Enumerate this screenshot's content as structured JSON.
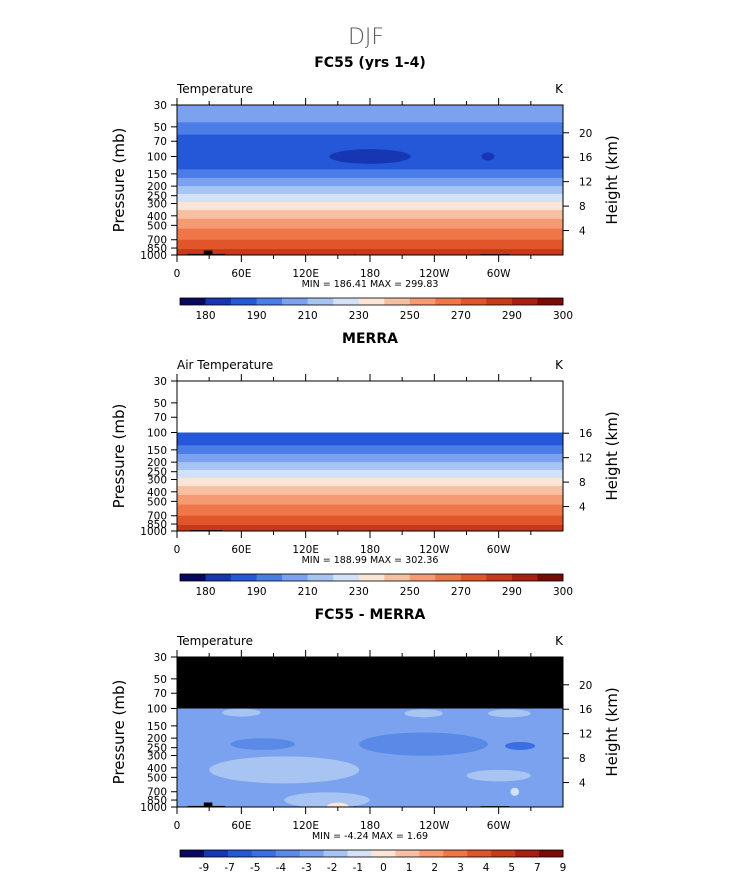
{
  "figure": {
    "title": "DJF"
  },
  "chart_data": [
    {
      "type": "heatmap",
      "title": "FC55 (yrs 1-4)",
      "variable": "Temperature",
      "units": "K",
      "ylabel": "Pressure (mb)",
      "ylabel_right": "Height (km)",
      "pressure_ticks": [
        "30",
        "50",
        "70",
        "100",
        "150",
        "200",
        "250",
        "300",
        "400",
        "500",
        "700",
        "850",
        "1000"
      ],
      "height_ticks": [
        "4",
        "8",
        "12",
        "16",
        "20"
      ],
      "lon_ticks": [
        "0",
        "60E",
        "120E",
        "180",
        "120W",
        "60W"
      ],
      "ylim_mb": [
        1000,
        30
      ],
      "top_level_mb": 30,
      "stats": "MIN =  186.41   MAX =  299.83",
      "colorbar_labels": [
        "180",
        "190",
        "210",
        "230",
        "250",
        "270",
        "290",
        "300"
      ],
      "colorbar_colors": [
        "#08085c",
        "#1636b4",
        "#2458d8",
        "#4a7ee6",
        "#7aa2ee",
        "#a8c4f2",
        "#d4e2f8",
        "#fbe5d6",
        "#f8c0a2",
        "#f59a72",
        "#ee7648",
        "#e0552a",
        "#c8381a",
        "#a81e10",
        "#7a0a06"
      ],
      "bands": [
        {
          "p_top": 30,
          "p_bottom": 45,
          "color": "#7aa2ee"
        },
        {
          "p_top": 45,
          "p_bottom": 60,
          "color": "#4a7ee6"
        },
        {
          "p_top": 60,
          "p_bottom": 135,
          "color": "#2458d8"
        },
        {
          "p_top": 135,
          "p_bottom": 165,
          "color": "#4a7ee6"
        },
        {
          "p_top": 165,
          "p_bottom": 200,
          "color": "#7aa2ee"
        },
        {
          "p_top": 200,
          "p_bottom": 240,
          "color": "#a8c4f2"
        },
        {
          "p_top": 240,
          "p_bottom": 290,
          "color": "#d4e2f8"
        },
        {
          "p_top": 290,
          "p_bottom": 350,
          "color": "#fbe5d6"
        },
        {
          "p_top": 350,
          "p_bottom": 430,
          "color": "#f8c0a2"
        },
        {
          "p_top": 430,
          "p_bottom": 540,
          "color": "#f59a72"
        },
        {
          "p_top": 540,
          "p_bottom": 700,
          "color": "#ee7648"
        },
        {
          "p_top": 700,
          "p_bottom": 870,
          "color": "#e0552a"
        },
        {
          "p_top": 870,
          "p_bottom": 1000,
          "color": "#c8381a"
        }
      ],
      "blobs": [
        {
          "lon": 180,
          "p": 100,
          "lon_halfwidth": 38,
          "color": "#1636b4"
        },
        {
          "lon": 290,
          "p": 100,
          "lon_halfwidth": 6,
          "color": "#1636b4"
        }
      ],
      "terrain": [
        {
          "lon_start": 10,
          "lon_end": 45,
          "p_top": 975
        },
        {
          "lon_start": 25,
          "lon_end": 33,
          "p_top": 900
        },
        {
          "lon_start": 165,
          "lon_end": 167,
          "p_top": 985
        },
        {
          "lon_start": 283,
          "lon_end": 310,
          "p_top": 980
        }
      ]
    },
    {
      "type": "heatmap",
      "title": "MERRA",
      "variable": "Air Temperature",
      "units": "K",
      "ylabel": "Pressure (mb)",
      "ylabel_right": "Height (km)",
      "pressure_ticks": [
        "30",
        "50",
        "70",
        "100",
        "150",
        "200",
        "250",
        "300",
        "400",
        "500",
        "700",
        "850",
        "1000"
      ],
      "height_ticks": [
        "4",
        "8",
        "12",
        "16"
      ],
      "lon_ticks": [
        "0",
        "60E",
        "120E",
        "180",
        "120W",
        "60W"
      ],
      "ylim_mb": [
        1000,
        30
      ],
      "top_level_mb": 100,
      "stats": "MIN =  188.99   MAX =  302.36",
      "colorbar_labels": [
        "180",
        "190",
        "210",
        "230",
        "250",
        "270",
        "290",
        "300"
      ],
      "colorbar_colors": [
        "#08085c",
        "#1636b4",
        "#2458d8",
        "#4a7ee6",
        "#7aa2ee",
        "#a8c4f2",
        "#d4e2f8",
        "#fbe5d6",
        "#f8c0a2",
        "#f59a72",
        "#ee7648",
        "#e0552a",
        "#c8381a",
        "#a81e10",
        "#7a0a06"
      ],
      "bands": [
        {
          "p_top": 100,
          "p_bottom": 135,
          "color": "#2458d8"
        },
        {
          "p_top": 135,
          "p_bottom": 165,
          "color": "#4a7ee6"
        },
        {
          "p_top": 165,
          "p_bottom": 200,
          "color": "#7aa2ee"
        },
        {
          "p_top": 200,
          "p_bottom": 240,
          "color": "#a8c4f2"
        },
        {
          "p_top": 240,
          "p_bottom": 290,
          "color": "#d4e2f8"
        },
        {
          "p_top": 290,
          "p_bottom": 350,
          "color": "#fbe5d6"
        },
        {
          "p_top": 350,
          "p_bottom": 430,
          "color": "#f8c0a2"
        },
        {
          "p_top": 430,
          "p_bottom": 540,
          "color": "#f59a72"
        },
        {
          "p_top": 540,
          "p_bottom": 700,
          "color": "#ee7648"
        },
        {
          "p_top": 700,
          "p_bottom": 870,
          "color": "#e0552a"
        },
        {
          "p_top": 870,
          "p_bottom": 1000,
          "color": "#c8381a"
        }
      ],
      "blobs": [],
      "terrain": [
        {
          "lon_start": 12,
          "lon_end": 42,
          "p_top": 980
        },
        {
          "lon_start": 283,
          "lon_end": 310,
          "p_top": 990
        }
      ]
    },
    {
      "type": "heatmap",
      "title": "FC55 - MERRA",
      "variable": "Temperature",
      "units": "K",
      "ylabel": "Pressure (mb)",
      "ylabel_right": "Height (km)",
      "pressure_ticks": [
        "30",
        "50",
        "70",
        "100",
        "150",
        "200",
        "250",
        "300",
        "400",
        "500",
        "700",
        "850",
        "1000"
      ],
      "height_ticks": [
        "4",
        "8",
        "12",
        "16",
        "20"
      ],
      "lon_ticks": [
        "0",
        "60E",
        "120E",
        "180",
        "120W",
        "60W"
      ],
      "ylim_mb": [
        1000,
        30
      ],
      "missing_above_mb": 100,
      "missing_color": "#000000",
      "stats": "MIN =   -4.24   MAX =    1.69",
      "colorbar_labels": [
        "-9",
        "-7",
        "-5",
        "-4",
        "-3",
        "-2",
        "-1",
        "0",
        "1",
        "2",
        "3",
        "4",
        "5",
        "7",
        "9"
      ],
      "colorbar_colors": [
        "#08085c",
        "#1636b4",
        "#2458d8",
        "#3a6ee2",
        "#5a8ae8",
        "#7aa2ee",
        "#a8c4f2",
        "#d4e2f8",
        "#fbe5d6",
        "#f8c0a2",
        "#f59a72",
        "#ee7648",
        "#e0552a",
        "#c8381a",
        "#a81e10",
        "#7a0a06"
      ],
      "bands": [
        {
          "p_top": 100,
          "p_bottom": 1000,
          "color": "#7aa2ee"
        }
      ],
      "blobs": [
        {
          "lon": 230,
          "p": 230,
          "lon_halfwidth": 60,
          "color": "#5a8ae8"
        },
        {
          "lon": 80,
          "p": 230,
          "lon_halfwidth": 30,
          "color": "#5a8ae8"
        },
        {
          "lon": 320,
          "p": 240,
          "lon_halfwidth": 14,
          "color": "#3a6ee2"
        },
        {
          "lon": 100,
          "p": 420,
          "lon_halfwidth": 70,
          "color": "#a8c4f2"
        },
        {
          "lon": 300,
          "p": 480,
          "lon_halfwidth": 30,
          "color": "#a8c4f2"
        },
        {
          "lon": 60,
          "p": 110,
          "lon_halfwidth": 18,
          "color": "#a8c4f2"
        },
        {
          "lon": 230,
          "p": 112,
          "lon_halfwidth": 18,
          "color": "#a8c4f2"
        },
        {
          "lon": 310,
          "p": 112,
          "lon_halfwidth": 20,
          "color": "#a8c4f2"
        },
        {
          "lon": 140,
          "p": 850,
          "lon_halfwidth": 40,
          "color": "#a8c4f2"
        },
        {
          "lon": 315,
          "p": 700,
          "lon_halfwidth": 4,
          "color": "#d4e2f8"
        },
        {
          "lon": 150,
          "p": 990,
          "lon_halfwidth": 10,
          "color": "#fbe5d6"
        }
      ],
      "terrain": [
        {
          "lon_start": 10,
          "lon_end": 45,
          "p_top": 975
        },
        {
          "lon_start": 25,
          "lon_end": 33,
          "p_top": 900
        },
        {
          "lon_start": 165,
          "lon_end": 167,
          "p_top": 985
        },
        {
          "lon_start": 283,
          "lon_end": 310,
          "p_top": 980
        }
      ]
    }
  ]
}
